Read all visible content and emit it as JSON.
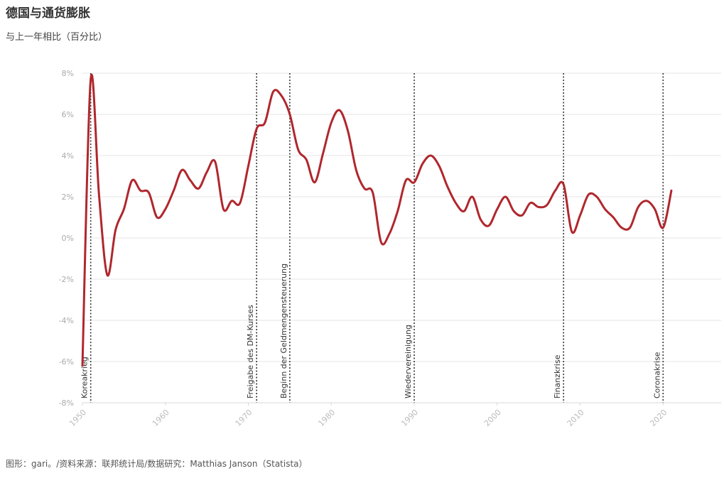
{
  "title": "德国与通货膨胀",
  "subtitle": "与上一年相比（百分比）",
  "footer": "图形：gari。/资料来源：联邦统计局/数据研究：Matthias Janson（Statista）",
  "colors": {
    "line": "#b0272d",
    "grid": "#e6e6e6",
    "event_line": "#333333"
  },
  "chart_data": {
    "type": "line",
    "title": "德国与通货膨胀",
    "subtitle": "与上一年相比（百分比）",
    "xlabel": "",
    "ylabel": "",
    "xlim": [
      1950,
      2027
    ],
    "ylim": [
      -8,
      8
    ],
    "x_ticks": [
      1950,
      1960,
      1970,
      1980,
      1990,
      2000,
      2010,
      2020
    ],
    "x_tick_labels": [
      "1950",
      "1960",
      "1970",
      "1980",
      "1990",
      "2000",
      "2010",
      "2020"
    ],
    "y_ticks": [
      -8,
      -6,
      -4,
      -2,
      0,
      2,
      4,
      6,
      8
    ],
    "y_tick_labels": [
      "-8%",
      "-6%",
      "-4%",
      "-2%",
      "0%",
      "2%",
      "4%",
      "6%",
      "8%"
    ],
    "grid": true,
    "series": [
      {
        "name": "Inflation",
        "x": [
          1950,
          1951,
          1952,
          1953,
          1954,
          1955,
          1956,
          1957,
          1958,
          1959,
          1960,
          1961,
          1962,
          1963,
          1964,
          1965,
          1966,
          1967,
          1968,
          1969,
          1970,
          1971,
          1972,
          1973,
          1974,
          1975,
          1976,
          1977,
          1978,
          1979,
          1980,
          1981,
          1982,
          1983,
          1984,
          1985,
          1986,
          1987,
          1988,
          1989,
          1990,
          1991,
          1992,
          1993,
          1994,
          1995,
          1996,
          1997,
          1998,
          1999,
          2000,
          2001,
          2002,
          2003,
          2004,
          2005,
          2006,
          2007,
          2008,
          2009,
          2010,
          2011,
          2012,
          2013,
          2014,
          2015,
          2016,
          2017,
          2018,
          2019,
          2020,
          2021
        ],
        "values": [
          -6.2,
          7.7,
          2.1,
          -1.8,
          0.4,
          1.4,
          2.8,
          2.3,
          2.2,
          1.0,
          1.4,
          2.3,
          3.3,
          2.8,
          2.4,
          3.2,
          3.7,
          1.4,
          1.8,
          1.7,
          3.5,
          5.3,
          5.6,
          7.1,
          6.9,
          6.0,
          4.3,
          3.8,
          2.7,
          4.1,
          5.6,
          6.2,
          5.2,
          3.3,
          2.4,
          2.2,
          -0.2,
          0.2,
          1.3,
          2.8,
          2.7,
          3.6,
          4.0,
          3.5,
          2.5,
          1.7,
          1.3,
          2.0,
          0.9,
          0.6,
          1.4,
          2.0,
          1.3,
          1.1,
          1.7,
          1.5,
          1.6,
          2.3,
          2.6,
          0.3,
          1.1,
          2.1,
          2.0,
          1.4,
          1.0,
          0.5,
          0.5,
          1.5,
          1.8,
          1.4,
          0.5,
          2.3
        ]
      }
    ],
    "events": [
      {
        "year": 1951,
        "label": "Koreakrieg"
      },
      {
        "year": 1971,
        "label": "Freigabe des DM-Kurses"
      },
      {
        "year": 1975,
        "label": "Beginn der Geldmengensteuerung"
      },
      {
        "year": 1990,
        "label": "Wiedervereinigung"
      },
      {
        "year": 2008,
        "label": "Finanzkrise"
      },
      {
        "year": 2020,
        "label": "Coronakrise"
      }
    ]
  }
}
